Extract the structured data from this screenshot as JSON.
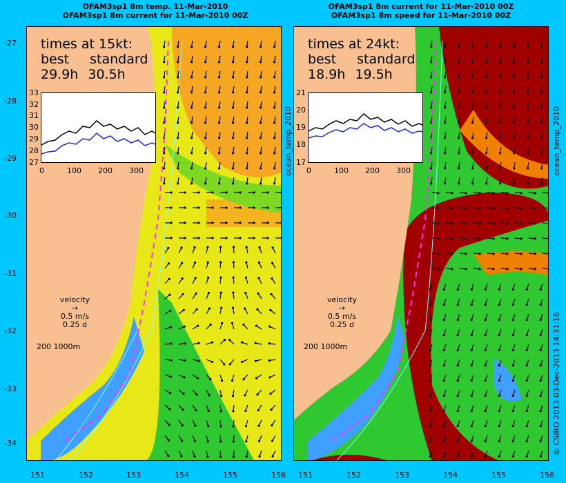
{
  "left_panel": {
    "title_line1": "OFAM3sp1 8m temp. 11-Mar-2010",
    "title_line2": "OFAM3sp1 8m current for 11-Mar-2010 00Z",
    "times_heading": "times at 15kt:",
    "best_label": "best",
    "standard_label": "standard",
    "best_value": "29.9h",
    "standard_value": "30.5h",
    "inset_yticks": [
      "33",
      "32",
      "31",
      "30",
      "29",
      "28",
      "27"
    ],
    "inset_xticks": [
      "0",
      "100",
      "200",
      "300"
    ],
    "side_label": "ocean_temp_2010",
    "colors": {
      "warm": "#f5a623",
      "mid": "#e0e020",
      "cool": "#30c830",
      "cold": "#40a0ff",
      "land": "#f8c090",
      "track": "#ff30ff"
    }
  },
  "right_panel": {
    "title_line1": "OFAM3sp1 8m current for 11-Mar-2010 00Z",
    "title_line2": "OFAM3sp1 8m speed for 11-Mar-2010 00Z",
    "times_heading": "times at 24kt:",
    "best_label": "best",
    "standard_label": "standard",
    "best_value": "18.9h",
    "standard_value": "19.5h",
    "inset_yticks": [
      "21",
      "20",
      "19",
      "18",
      "17"
    ],
    "inset_xticks": [
      "0",
      "100",
      "200",
      "300"
    ],
    "side_label": "ocean_temp_2010",
    "colors": {
      "fast": "#a00000",
      "orange": "#f08000",
      "mid": "#e0e020",
      "cool": "#30c830",
      "cold": "#40a0ff",
      "land": "#f8c090"
    }
  },
  "velocity_legend": {
    "heading": "velocity",
    "speed": "0.5 m/s",
    "duration": "0.25 d"
  },
  "isobath_legend": {
    "shallow": "200",
    "deep": "1000m"
  },
  "lat_ticks": [
    "-27",
    "-28",
    "-29",
    "-30",
    "-31",
    "-32",
    "-33",
    "-34"
  ],
  "lon_ticks_left": [
    "151",
    "152",
    "153",
    "154",
    "155",
    "156"
  ],
  "lon_ticks_right": [
    "151",
    "152",
    "153",
    "154",
    "155",
    "156"
  ],
  "credit": "© CSIRO 2013  03-Dec-2013 14:31:16"
}
